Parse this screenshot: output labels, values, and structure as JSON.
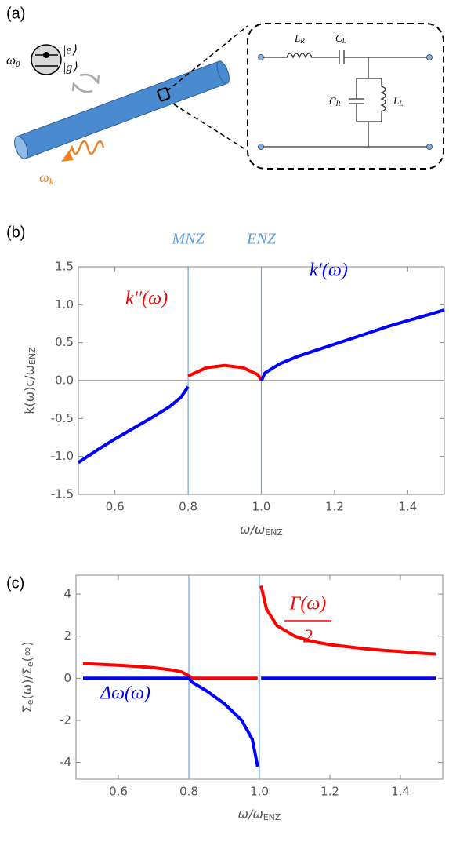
{
  "diagram": {
    "panel_label": "(a)",
    "omega_0": [
      "ω",
      "0"
    ],
    "ket_e": "|e⟩",
    "ket_g": "|g⟩",
    "omega_k": [
      "ω",
      "k"
    ],
    "L_R": [
      "L",
      "R"
    ],
    "C_L": [
      "C",
      "L"
    ],
    "C_R": [
      "C",
      "R"
    ],
    "L_L": [
      "L",
      "L"
    ]
  },
  "chart_data": [
    {
      "type": "line",
      "panel_label": "(b)",
      "xlabel": [
        "ω/ω",
        "ENZ"
      ],
      "ylabel": [
        "k(ω)c/ω",
        "ENZ"
      ],
      "xlim": [
        0.5,
        1.5
      ],
      "ylim": [
        -1.5,
        1.5
      ],
      "xticks": [
        0.6,
        0.8,
        {
          "value": 1.0,
          "label": "1.0"
        },
        1.2,
        1.4
      ],
      "yticks": [
        -1.5,
        {
          "value": -1.0,
          "label": "-1.0"
        },
        -0.5,
        {
          "value": 0.0,
          "label": "0.0"
        },
        0.5,
        {
          "value": 1.0,
          "label": "1.0"
        },
        1.5
      ],
      "vlines": [
        {
          "value": 0.8,
          "label": "MNZ"
        },
        {
          "value": 1.0,
          "label": "ENZ"
        }
      ],
      "zero_line": true,
      "x": [
        0.5,
        0.55,
        0.6,
        0.65,
        0.7,
        0.75,
        0.78,
        0.8,
        0.85,
        0.9,
        0.95,
        0.99,
        1.0,
        1.01,
        1.05,
        1.1,
        1.15,
        1.2,
        1.25,
        1.3,
        1.35,
        1.4,
        1.45,
        1.5
      ],
      "series": [
        {
          "name": "k′′(ω)",
          "color": "#ff0000",
          "values": [
            null,
            null,
            null,
            null,
            null,
            null,
            null,
            0.06,
            0.17,
            0.2,
            0.17,
            0.08,
            0.01,
            null,
            null,
            null,
            null,
            null,
            null,
            null,
            null,
            null,
            null,
            null
          ]
        },
        {
          "name": "k′(ω)",
          "color": "#0000ff",
          "values": [
            -1.08,
            -0.92,
            -0.77,
            -0.63,
            -0.49,
            -0.34,
            -0.22,
            -0.08,
            null,
            null,
            null,
            null,
            0.0,
            0.1,
            0.22,
            0.32,
            0.4,
            0.48,
            0.56,
            0.64,
            0.72,
            0.79,
            0.86,
            0.93
          ]
        }
      ]
    },
    {
      "type": "line",
      "panel_label": "(c)",
      "xlabel": [
        "ω/ω",
        "ENZ"
      ],
      "ylabel": [
        "Σ",
        "e",
        "(ω)/Σ",
        "e",
        "(∞)"
      ],
      "xlim": [
        0.48,
        1.52
      ],
      "ylim": [
        -4.8,
        4.9
      ],
      "xticks": [
        0.6,
        0.8,
        {
          "value": 1.0,
          "label": "1.0"
        },
        1.2,
        1.4
      ],
      "yticks": [
        -4,
        -2,
        0,
        2,
        4
      ],
      "vlines": [
        0.8,
        1.0
      ],
      "zero_line": false,
      "x": [
        0.5,
        0.55,
        0.6,
        0.65,
        0.7,
        0.75,
        0.78,
        0.8,
        0.81,
        0.85,
        0.9,
        0.95,
        0.98,
        0.995,
        1.0,
        1.005,
        1.02,
        1.05,
        1.1,
        1.15,
        1.2,
        1.25,
        1.3,
        1.35,
        1.4,
        1.45,
        1.5
      ],
      "series": [
        {
          "name": "Γ(ω)",
          "label_denominator": "2",
          "color": "#ff0000",
          "values": [
            0.7,
            0.66,
            0.62,
            0.57,
            0.5,
            0.4,
            0.3,
            0.12,
            0,
            0,
            0,
            0,
            0,
            0,
            null,
            4.4,
            3.3,
            2.5,
            2.0,
            1.75,
            1.6,
            1.5,
            1.4,
            1.33,
            1.27,
            1.2,
            1.15
          ]
        },
        {
          "name": "Δω(ω)",
          "color": "#0000ff",
          "values": [
            0,
            0,
            0,
            0,
            0,
            0,
            0,
            0,
            -0.2,
            -0.6,
            -1.2,
            -2.0,
            -2.9,
            -4.2,
            null,
            0,
            0,
            0,
            0,
            0,
            0,
            0,
            0,
            0,
            0,
            0,
            0
          ]
        }
      ]
    }
  ]
}
